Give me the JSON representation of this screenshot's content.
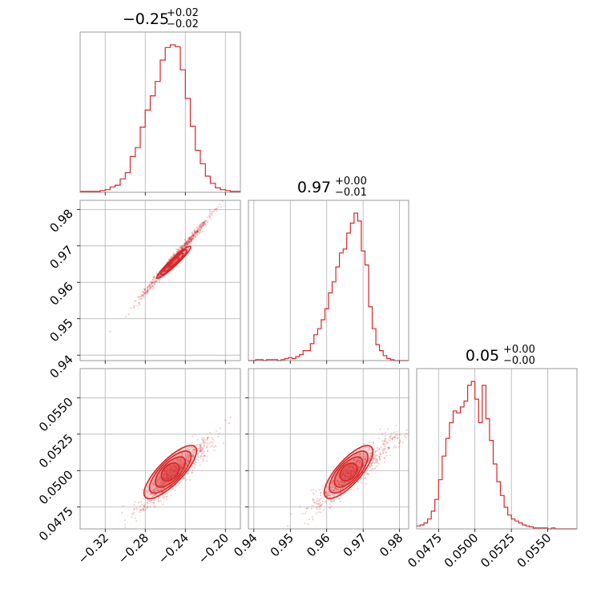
{
  "chart_data": {
    "type": "corner",
    "color": "#d62728",
    "parameters": [
      {
        "title_main": "−0.25",
        "title_sup": "+0.02",
        "title_sub": "−0.02",
        "range": [
          -0.345,
          -0.185
        ],
        "center": -0.25,
        "sigma": 0.017,
        "ticks": [
          -0.32,
          -0.28,
          -0.24,
          -0.2
        ],
        "tick_labels": [
          "−0.32",
          "−0.28",
          "−0.24",
          "−0.20"
        ]
      },
      {
        "title_main": "0.97",
        "title_sup": "+0.00",
        "title_sub": "−0.01",
        "range": [
          0.9385,
          0.9825
        ],
        "center": 0.967,
        "sigma": 0.0055,
        "ticks": [
          0.94,
          0.95,
          0.96,
          0.97,
          0.98
        ],
        "tick_labels": [
          "0.94",
          "0.95",
          "0.96",
          "0.97",
          "0.98"
        ]
      },
      {
        "title_main": "0.05",
        "title_sup": "+0.00",
        "title_sub": "−0.00",
        "range": [
          0.046,
          0.057
        ],
        "center": 0.0498,
        "sigma": 0.00115,
        "ticks": [
          0.0475,
          0.05,
          0.0525,
          0.055
        ],
        "tick_labels": [
          "0.0475",
          "0.0500",
          "0.0525",
          "0.0550"
        ]
      }
    ],
    "histograms": [
      {
        "param": 0,
        "bin_edges": [
          -0.345,
          -0.34,
          -0.335,
          -0.33,
          -0.325,
          -0.32,
          -0.315,
          -0.31,
          -0.305,
          -0.3,
          -0.295,
          -0.29,
          -0.285,
          -0.28,
          -0.275,
          -0.27,
          -0.265,
          -0.26,
          -0.255,
          -0.25,
          -0.245,
          -0.24,
          -0.235,
          -0.23,
          -0.225,
          -0.22,
          -0.215,
          -0.21,
          -0.205,
          -0.2,
          -0.195,
          -0.19,
          -0.185
        ],
        "counts": [
          1,
          1,
          1,
          1,
          2,
          3,
          6,
          8,
          15,
          22,
          40,
          50,
          73,
          92,
          108,
          124,
          148,
          162,
          165,
          163,
          137,
          105,
          74,
          47,
          32,
          18,
          10,
          5,
          3,
          2,
          1,
          1
        ]
      },
      {
        "param": 1,
        "bin_edges": [
          0.9385,
          0.9395,
          0.9405,
          0.9415,
          0.9425,
          0.9435,
          0.9445,
          0.9455,
          0.9465,
          0.9475,
          0.9485,
          0.9495,
          0.9505,
          0.9515,
          0.9525,
          0.9535,
          0.9545,
          0.9555,
          0.9565,
          0.9575,
          0.9585,
          0.9595,
          0.9605,
          0.9615,
          0.9625,
          0.9635,
          0.9645,
          0.9655,
          0.9665,
          0.9675,
          0.9685,
          0.9695,
          0.9705,
          0.9715,
          0.9725,
          0.9735,
          0.9745,
          0.9755,
          0.9765,
          0.9775,
          0.9785,
          0.9795,
          0.9805,
          0.9815,
          0.9825
        ],
        "counts": [
          0,
          0,
          1,
          1,
          0,
          1,
          1,
          1,
          0,
          1,
          2,
          3,
          2,
          4,
          6,
          10,
          10,
          17,
          26,
          32,
          41,
          52,
          68,
          79,
          94,
          108,
          112,
          128,
          138,
          148,
          140,
          110,
          96,
          54,
          32,
          16,
          10,
          5,
          2,
          1,
          0,
          0,
          0,
          0
        ]
      },
      {
        "param": 2,
        "bin_edges": [
          0.046,
          0.04625,
          0.0465,
          0.04675,
          0.047,
          0.04725,
          0.0475,
          0.04775,
          0.048,
          0.04825,
          0.0485,
          0.04875,
          0.049,
          0.04925,
          0.0495,
          0.04975,
          0.05,
          0.05025,
          0.0505,
          0.05075,
          0.051,
          0.05125,
          0.0515,
          0.05175,
          0.052,
          0.05225,
          0.0525,
          0.05275,
          0.053,
          0.05325,
          0.0535,
          0.05375,
          0.054,
          0.05425,
          0.0545,
          0.05475,
          0.055,
          0.05525,
          0.0555,
          0.05575,
          0.056,
          0.05625,
          0.0565,
          0.05675,
          0.057
        ],
        "counts": [
          3,
          4,
          6,
          10,
          18,
          30,
          50,
          74,
          92,
          108,
          120,
          118,
          124,
          130,
          146,
          150,
          132,
          108,
          146,
          112,
          90,
          66,
          48,
          34,
          22,
          14,
          10,
          8,
          6,
          4,
          3,
          2,
          1,
          1,
          1,
          1,
          0,
          1,
          0,
          0,
          0,
          0,
          0,
          0
        ]
      }
    ],
    "scatter_panels": [
      {
        "x_param": 0,
        "y_param": 1,
        "ellipse_centers": [
          [
            -0.265,
            0.962
          ],
          [
            -0.25,
            0.966
          ],
          [
            -0.238,
            0.969
          ]
        ]
      },
      {
        "x_param": 0,
        "y_param": 2,
        "ellipse_centers": [
          [
            -0.275,
            0.0485
          ],
          [
            -0.255,
            0.0497
          ],
          [
            -0.235,
            0.0513
          ]
        ]
      },
      {
        "x_param": 1,
        "y_param": 2,
        "ellipse_centers": [
          [
            0.961,
            0.0485
          ],
          [
            0.966,
            0.0497
          ],
          [
            0.971,
            0.0513
          ]
        ]
      }
    ],
    "grid": true
  }
}
